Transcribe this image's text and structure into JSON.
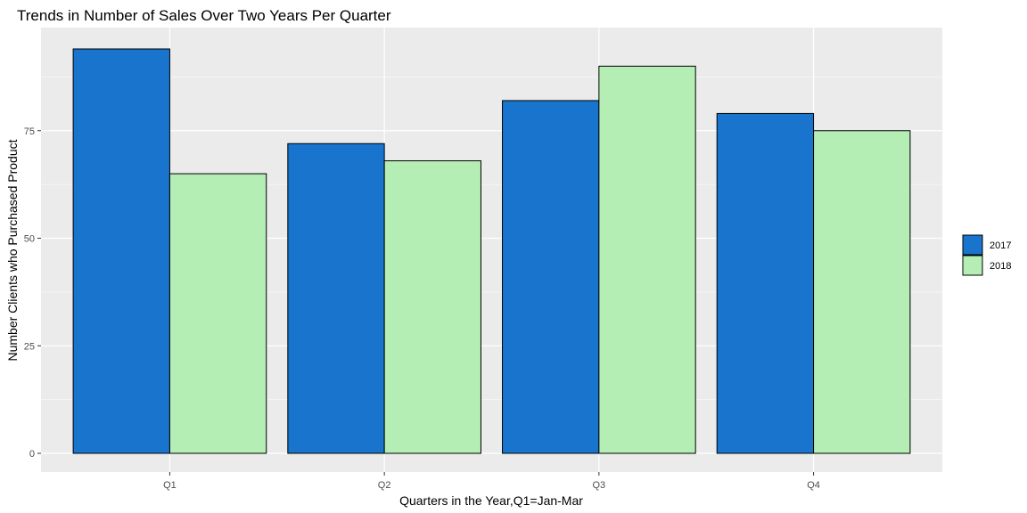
{
  "chart_data": {
    "type": "bar",
    "title": "Trends in Number of Sales Over Two Years Per Quarter",
    "xlabel": "Quarters in the Year,Q1=Jan-Mar",
    "ylabel": "Number Clients who Purchased Product",
    "categories": [
      "Q1",
      "Q2",
      "Q3",
      "Q4"
    ],
    "series": [
      {
        "name": "2017",
        "values": [
          94,
          72,
          82,
          79
        ],
        "color": "#1874cd"
      },
      {
        "name": "2018",
        "values": [
          65,
          68,
          90,
          75
        ],
        "color": "#b4eeb4"
      }
    ],
    "ylim": [
      0,
      100
    ],
    "yticks": [
      0,
      25,
      50,
      75
    ],
    "ytick_labels": [
      "0",
      "25",
      "50",
      "75"
    ],
    "grid": true,
    "legend": "right",
    "panel_color": "#ebebeb",
    "grid_color": "#ffffff",
    "bar_outline_color": "#000000"
  }
}
